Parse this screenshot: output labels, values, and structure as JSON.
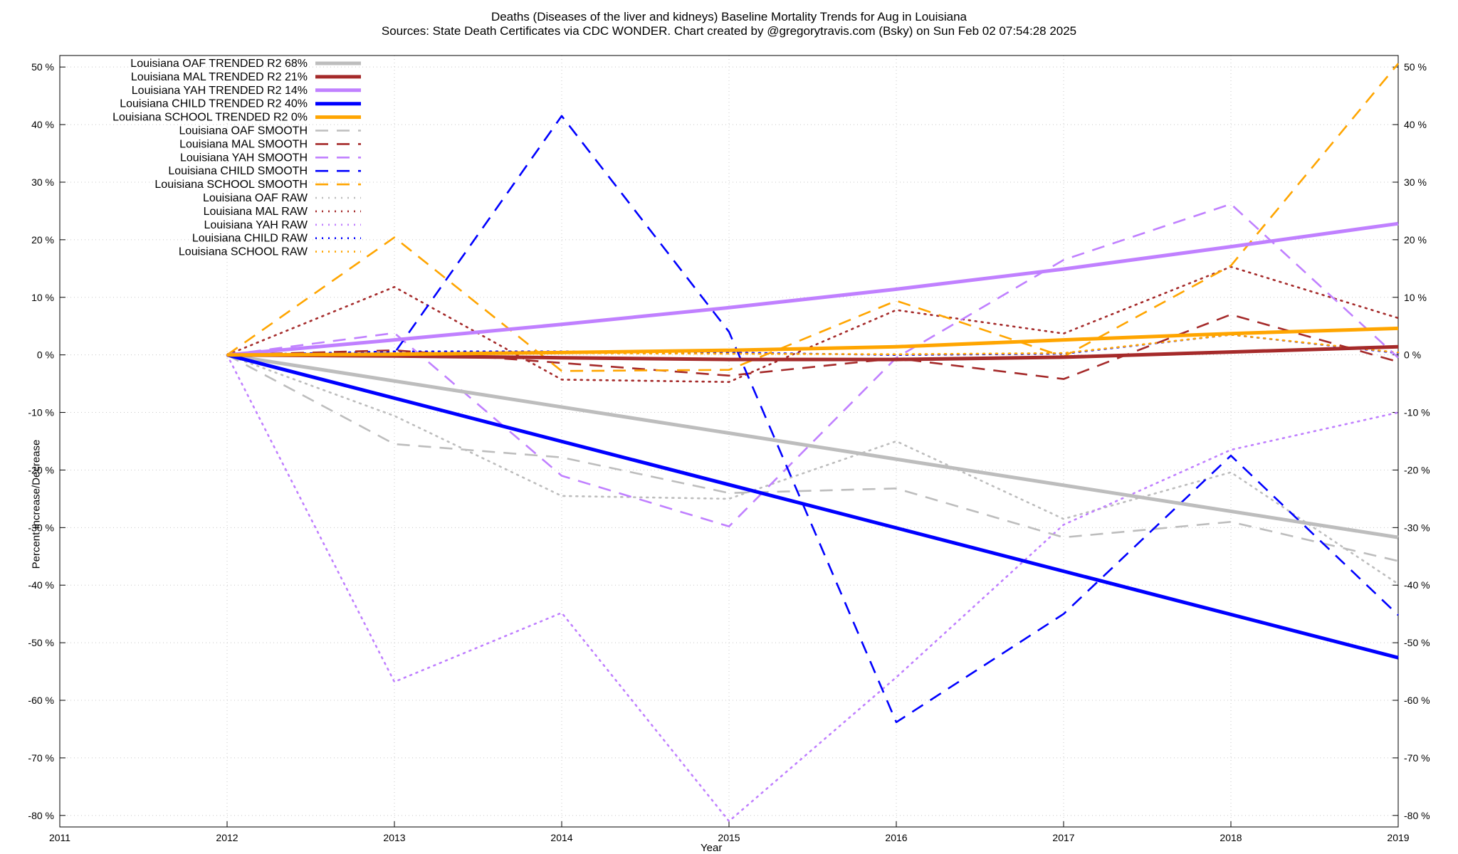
{
  "title": {
    "line1": "Deaths (Diseases of the liver and kidneys)  Baseline Mortality Trends for Aug in Louisiana",
    "line2": "Sources: State Death Certificates via CDC WONDER.              Chart created by @gregorytravis.com (Bsky) on Sun Feb 02 07:54:28 2025"
  },
  "chart_data": {
    "type": "line",
    "xlabel": "Year",
    "ylabel": "Percent Increase/Decrease",
    "xlim": [
      2011,
      2019
    ],
    "ylim": [
      -82,
      52
    ],
    "x_ticks": [
      2011,
      2012,
      2013,
      2014,
      2015,
      2016,
      2017,
      2018,
      2019
    ],
    "y_ticks": [
      50,
      40,
      30,
      20,
      10,
      0,
      -10,
      -20,
      -30,
      -40,
      -50,
      -60,
      -70,
      -80
    ],
    "y_tick_suffix": " %",
    "grid": true,
    "legend_position": "top-left",
    "series": [
      {
        "name": "Louisiana OAF TRENDED R2  68%",
        "style": "solid",
        "color": "#bdbdbd",
        "x": [
          2012,
          2019
        ],
        "y": [
          0,
          -31.7
        ]
      },
      {
        "name": "Louisiana MAL TRENDED R2  21%",
        "style": "solid",
        "color": "#a52a2a",
        "x": [
          2012,
          2013,
          2014,
          2015,
          2016,
          2017,
          2018,
          2019
        ],
        "y": [
          0,
          -0.2,
          -0.5,
          -0.8,
          -0.8,
          -0.4,
          0.5,
          1.4
        ]
      },
      {
        "name": "Louisiana YAH TRENDED R2  14%",
        "style": "solid",
        "color": "#c080ff",
        "x": [
          2012,
          2013,
          2014,
          2015,
          2016,
          2017,
          2018,
          2019
        ],
        "y": [
          0,
          2.6,
          5.3,
          8.2,
          11.4,
          14.9,
          18.8,
          22.8
        ]
      },
      {
        "name": "Louisiana CHILD TRENDED R2  40%",
        "style": "solid",
        "color": "#0000ff",
        "x": [
          2012,
          2019
        ],
        "y": [
          0,
          -52.6
        ]
      },
      {
        "name": "Louisiana SCHOOL TRENDED R2   0%",
        "style": "solid",
        "color": "#ffa500",
        "x": [
          2012,
          2013,
          2014,
          2015,
          2016,
          2017,
          2018,
          2019
        ],
        "y": [
          0,
          0.1,
          0.4,
          0.8,
          1.4,
          2.6,
          3.7,
          4.6
        ]
      },
      {
        "name": "Louisiana OAF SMOOTH",
        "style": "dashed",
        "color": "#bdbdbd",
        "x": [
          2012,
          2013,
          2014,
          2015,
          2016,
          2017,
          2018,
          2019
        ],
        "y": [
          0,
          -15.5,
          -17.8,
          -24,
          -23.2,
          -31.7,
          -29,
          -35.8
        ]
      },
      {
        "name": "Louisiana MAL SMOOTH",
        "style": "dashed",
        "color": "#a52a2a",
        "x": [
          2012,
          2013,
          2014,
          2015,
          2016,
          2017,
          2018,
          2019
        ],
        "y": [
          0,
          0.8,
          -1.4,
          -3.6,
          -0.6,
          -4.2,
          7,
          -1.2
        ]
      },
      {
        "name": "Louisiana YAH SMOOTH",
        "style": "dashed",
        "color": "#c080ff",
        "x": [
          2012,
          2013,
          2014,
          2015,
          2016,
          2017,
          2018,
          2019
        ],
        "y": [
          0,
          3.8,
          -21,
          -29.8,
          -0.5,
          16.5,
          26.2,
          -0.5
        ]
      },
      {
        "name": "Louisiana CHILD SMOOTH",
        "style": "dashed",
        "color": "#0000ff",
        "x": [
          2012,
          2013,
          2014,
          2015,
          2016,
          2017,
          2018,
          2019
        ],
        "y": [
          0,
          0.3,
          41.5,
          4,
          -63.8,
          -45,
          -17.5,
          -45.2
        ]
      },
      {
        "name": "Louisiana SCHOOL SMOOTH",
        "style": "dashed",
        "color": "#ffa500",
        "x": [
          2012,
          2013,
          2014,
          2015,
          2016,
          2017,
          2018,
          2019
        ],
        "y": [
          0,
          20.4,
          -2.8,
          -2.6,
          9.4,
          -0.3,
          15.5,
          50.6
        ]
      },
      {
        "name": "Louisiana OAF RAW",
        "style": "dotted",
        "color": "#bdbdbd",
        "x": [
          2012,
          2013,
          2014,
          2015,
          2016,
          2017,
          2018,
          2019
        ],
        "y": [
          0,
          -10.6,
          -24.5,
          -25,
          -15,
          -28.5,
          -20.4,
          -39.8
        ]
      },
      {
        "name": "Louisiana MAL RAW",
        "style": "dotted",
        "color": "#a52a2a",
        "x": [
          2012,
          2013,
          2014,
          2015,
          2016,
          2017,
          2018,
          2019
        ],
        "y": [
          0,
          11.8,
          -4.3,
          -4.7,
          7.8,
          3.7,
          15.3,
          6.4
        ]
      },
      {
        "name": "Louisiana YAH RAW",
        "style": "dotted",
        "color": "#c080ff",
        "x": [
          2012,
          2013,
          2014,
          2015,
          2016,
          2017,
          2018,
          2019
        ],
        "y": [
          0,
          -56.8,
          -44.8,
          -81,
          -56,
          -29.5,
          -16.5,
          -10
        ]
      },
      {
        "name": "Louisiana CHILD RAW",
        "style": "dotted",
        "color": "#0000ff",
        "x": [
          2012,
          2013,
          2014,
          2015,
          2016,
          2017,
          2018,
          2019
        ],
        "y": [
          0,
          0.6,
          0.6,
          0.4,
          0,
          0.2,
          3.5,
          0.3
        ]
      },
      {
        "name": "Louisiana SCHOOL RAW",
        "style": "dotted",
        "color": "#ffa500",
        "x": [
          2012,
          2013,
          2014,
          2015,
          2016,
          2017,
          2018,
          2019
        ],
        "y": [
          0,
          0.3,
          0.3,
          0.2,
          0.1,
          0.3,
          3.5,
          0.4
        ]
      }
    ]
  }
}
